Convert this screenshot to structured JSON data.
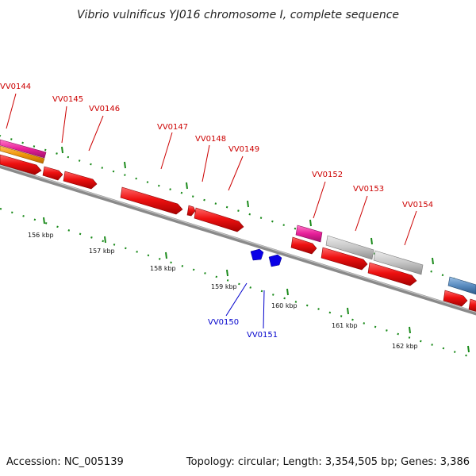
{
  "title": "Vibrio vulnificus YJ016 chromosome I, complete sequence",
  "footer": {
    "accession": "Accession: NC_005139",
    "topology": "Topology: circular; Length: 3,354,505 bp; Genes: 3,386"
  },
  "colors": {
    "forward_cds": "#ee1111",
    "gene_label_red": "#cc0000",
    "gene_label_blue": "#0000cc",
    "reverse_cds": "#0a00e6",
    "magenta_feature": "#e8209a",
    "orange_feature": "#f0960a",
    "gray_feature": "#c6c6c6",
    "steel_feature": "#5a8cc0",
    "backbone": "#8a8a8a",
    "ticks": "#1a8a1a"
  },
  "gene_labels": [
    {
      "id": "VV0144",
      "strand": "forward"
    },
    {
      "id": "VV0145",
      "strand": "forward"
    },
    {
      "id": "VV0146",
      "strand": "forward"
    },
    {
      "id": "VV0147",
      "strand": "forward"
    },
    {
      "id": "VV0148",
      "strand": "forward"
    },
    {
      "id": "VV0149",
      "strand": "forward"
    },
    {
      "id": "VV0150",
      "strand": "reverse"
    },
    {
      "id": "VV0151",
      "strand": "reverse"
    },
    {
      "id": "VV0152",
      "strand": "forward"
    },
    {
      "id": "VV0153",
      "strand": "forward"
    },
    {
      "id": "VV0154",
      "strand": "forward"
    }
  ],
  "kbp_labels": [
    "156 kbp",
    "157 kbp",
    "158 kbp",
    "159 kbp",
    "160 kbp",
    "161 kbp",
    "162 kbp"
  ]
}
